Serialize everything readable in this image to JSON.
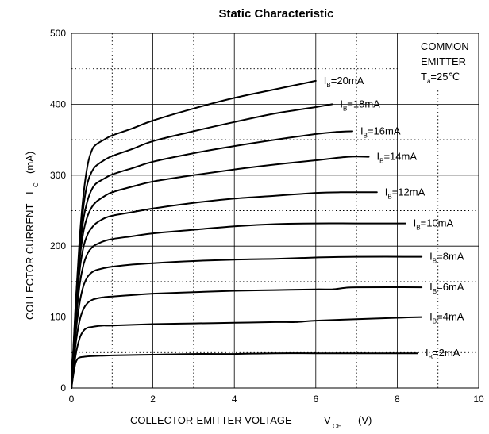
{
  "chart_data": {
    "type": "line",
    "title": "Static Characteristic",
    "xlabel": {
      "main": "COLLECTOR-EMITTER VOLTAGE",
      "sym": "V",
      "sub": "CE",
      "unit": "(V)"
    },
    "ylabel": {
      "main": "COLLECTOR CURRENT",
      "sym": "I",
      "sub": "C",
      "unit": "(mA)"
    },
    "xlim": [
      0,
      10
    ],
    "ylim": [
      0,
      500
    ],
    "xticks": [
      "0",
      "2",
      "4",
      "6",
      "8",
      "10"
    ],
    "yticks": [
      "0",
      "100",
      "200",
      "300",
      "400",
      "500"
    ],
    "grid": true,
    "condition_box": {
      "line1": "COMMON",
      "line2": "EMITTER",
      "line3_sym": "T",
      "line3_sub": "a",
      "line3_rest": "=25℃"
    },
    "series": [
      {
        "name": "IB=20mA",
        "label_main": "I",
        "label_sub": "B",
        "label_rest": "=20mA",
        "points": [
          [
            0,
            0
          ],
          [
            0.1,
            115
          ],
          [
            0.2,
            210
          ],
          [
            0.3,
            275
          ],
          [
            0.4,
            315
          ],
          [
            0.5,
            335
          ],
          [
            0.6,
            343
          ],
          [
            0.8,
            350
          ],
          [
            1,
            356
          ],
          [
            1.5,
            366
          ],
          [
            2,
            377
          ],
          [
            3,
            394
          ],
          [
            4,
            409
          ],
          [
            5,
            421
          ],
          [
            6,
            433
          ]
        ]
      },
      {
        "name": "IB=18mA",
        "label_main": "I",
        "label_sub": "B",
        "label_rest": "=18mA",
        "points": [
          [
            0,
            0
          ],
          [
            0.1,
            110
          ],
          [
            0.2,
            200
          ],
          [
            0.3,
            258
          ],
          [
            0.4,
            290
          ],
          [
            0.5,
            305
          ],
          [
            0.6,
            313
          ],
          [
            0.8,
            321
          ],
          [
            1,
            327
          ],
          [
            1.5,
            337
          ],
          [
            2,
            348
          ],
          [
            3,
            362
          ],
          [
            4,
            375
          ],
          [
            5,
            387
          ],
          [
            6,
            396
          ],
          [
            6.4,
            400
          ]
        ]
      },
      {
        "name": "IB=16mA",
        "label_main": "I",
        "label_sub": "B",
        "label_rest": "=16mA",
        "points": [
          [
            0,
            0
          ],
          [
            0.1,
            105
          ],
          [
            0.2,
            190
          ],
          [
            0.3,
            240
          ],
          [
            0.4,
            265
          ],
          [
            0.5,
            280
          ],
          [
            0.6,
            288
          ],
          [
            0.8,
            295
          ],
          [
            1,
            301
          ],
          [
            1.5,
            310
          ],
          [
            2,
            319
          ],
          [
            3,
            331
          ],
          [
            4,
            341
          ],
          [
            5,
            350
          ],
          [
            6,
            358
          ],
          [
            6.5,
            361
          ],
          [
            6.9,
            362
          ]
        ]
      },
      {
        "name": "IB=14mA",
        "label_main": "I",
        "label_sub": "B",
        "label_rest": "=14mA",
        "points": [
          [
            0,
            0
          ],
          [
            0.1,
            100
          ],
          [
            0.2,
            180
          ],
          [
            0.3,
            222
          ],
          [
            0.4,
            243
          ],
          [
            0.5,
            255
          ],
          [
            0.6,
            262
          ],
          [
            0.8,
            270
          ],
          [
            1,
            276
          ],
          [
            1.5,
            284
          ],
          [
            2,
            291
          ],
          [
            3,
            300
          ],
          [
            4,
            308
          ],
          [
            5,
            315
          ],
          [
            6,
            321
          ],
          [
            6.8,
            326
          ],
          [
            7.3,
            326
          ]
        ]
      },
      {
        "name": "IB=12mA",
        "label_main": "I",
        "label_sub": "B",
        "label_rest": "=12mA",
        "points": [
          [
            0,
            0
          ],
          [
            0.1,
            95
          ],
          [
            0.2,
            165
          ],
          [
            0.3,
            200
          ],
          [
            0.4,
            217
          ],
          [
            0.5,
            226
          ],
          [
            0.6,
            232
          ],
          [
            0.8,
            239
          ],
          [
            1,
            243
          ],
          [
            1.5,
            248
          ],
          [
            2,
            253
          ],
          [
            3,
            261
          ],
          [
            4,
            267
          ],
          [
            5,
            271
          ],
          [
            6,
            275
          ],
          [
            6.6,
            276
          ],
          [
            7.5,
            276
          ]
        ]
      },
      {
        "name": "IB=10mA",
        "label_main": "I",
        "label_sub": "B",
        "label_rest": "=10mA",
        "points": [
          [
            0,
            0
          ],
          [
            0.1,
            85
          ],
          [
            0.2,
            145
          ],
          [
            0.3,
            175
          ],
          [
            0.4,
            190
          ],
          [
            0.5,
            198
          ],
          [
            0.6,
            202
          ],
          [
            0.8,
            207
          ],
          [
            1,
            210
          ],
          [
            1.5,
            214
          ],
          [
            2,
            218
          ],
          [
            3,
            223
          ],
          [
            4,
            228
          ],
          [
            5,
            231
          ],
          [
            6,
            232
          ],
          [
            7,
            232
          ],
          [
            8.2,
            232
          ]
        ]
      },
      {
        "name": "IB=8mA",
        "label_main": "I",
        "label_sub": "B",
        "label_rest": "=8mA",
        "points": [
          [
            0,
            0
          ],
          [
            0.1,
            75
          ],
          [
            0.2,
            120
          ],
          [
            0.3,
            145
          ],
          [
            0.4,
            157
          ],
          [
            0.5,
            163
          ],
          [
            0.6,
            166
          ],
          [
            0.8,
            169
          ],
          [
            1,
            171
          ],
          [
            1.5,
            174
          ],
          [
            2,
            176
          ],
          [
            3,
            179
          ],
          [
            4,
            181
          ],
          [
            5,
            182
          ],
          [
            6,
            184
          ],
          [
            7,
            185
          ],
          [
            8.6,
            185
          ]
        ]
      },
      {
        "name": "IB=6mA",
        "label_main": "I",
        "label_sub": "B",
        "label_rest": "=6mA",
        "points": [
          [
            0,
            0
          ],
          [
            0.1,
            60
          ],
          [
            0.2,
            95
          ],
          [
            0.3,
            112
          ],
          [
            0.4,
            120
          ],
          [
            0.5,
            124
          ],
          [
            0.6,
            126
          ],
          [
            0.8,
            128
          ],
          [
            1,
            129
          ],
          [
            1.5,
            131
          ],
          [
            2,
            133
          ],
          [
            3,
            135
          ],
          [
            4,
            137
          ],
          [
            5,
            138
          ],
          [
            6,
            139
          ],
          [
            6.4,
            139
          ],
          [
            6.7,
            141
          ],
          [
            7,
            142
          ],
          [
            8.6,
            142
          ]
        ]
      },
      {
        "name": "IB=4mA",
        "label_main": "I",
        "label_sub": "B",
        "label_rest": "=4mA",
        "points": [
          [
            0,
            0
          ],
          [
            0.1,
            45
          ],
          [
            0.2,
            70
          ],
          [
            0.3,
            81
          ],
          [
            0.4,
            85
          ],
          [
            0.5,
            86
          ],
          [
            0.6,
            87
          ],
          [
            0.8,
            88
          ],
          [
            1,
            88
          ],
          [
            2,
            90
          ],
          [
            3,
            91
          ],
          [
            4,
            92
          ],
          [
            5,
            93
          ],
          [
            5.5,
            93
          ],
          [
            6,
            95
          ],
          [
            7,
            97
          ],
          [
            8,
            99
          ],
          [
            8.6,
            100
          ]
        ]
      },
      {
        "name": "IB=2mA",
        "label_main": "I",
        "label_sub": "B",
        "label_rest": "=2mA",
        "points": [
          [
            0,
            0
          ],
          [
            0.05,
            20
          ],
          [
            0.1,
            35
          ],
          [
            0.15,
            41
          ],
          [
            0.2,
            43
          ],
          [
            0.3,
            44
          ],
          [
            0.5,
            45
          ],
          [
            1,
            46
          ],
          [
            2,
            47
          ],
          [
            3,
            48
          ],
          [
            4,
            48
          ],
          [
            5,
            49
          ],
          [
            6,
            49
          ],
          [
            7,
            49
          ],
          [
            8,
            49
          ],
          [
            8.5,
            49
          ]
        ]
      }
    ]
  }
}
